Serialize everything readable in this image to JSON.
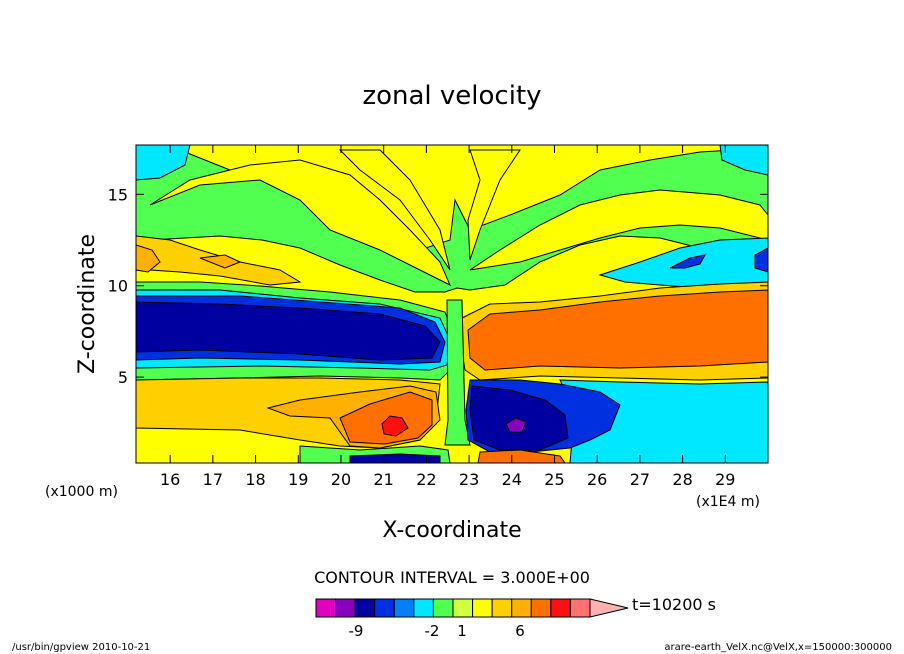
{
  "chart_data": {
    "type": "heatmap",
    "title": "zonal velocity",
    "xlabel": "X-coordinate",
    "ylabel": "Z-coordinate",
    "x_unit": "(x1E4 m)",
    "y_unit": "(x1000 m)",
    "xlim": [
      15.2,
      30.0
    ],
    "ylim": [
      0.3,
      17.7
    ],
    "x_ticks": [
      16,
      17,
      18,
      19,
      20,
      21,
      22,
      23,
      24,
      25,
      26,
      27,
      28,
      29
    ],
    "x_tick_labels": [
      "16",
      "17",
      "18",
      "19",
      "20",
      "21",
      "22",
      "23",
      "24",
      "25",
      "26",
      "27",
      "28",
      "29"
    ],
    "y_ticks": [
      5,
      10,
      15
    ],
    "y_tick_labels": [
      "5",
      "10",
      "15"
    ],
    "contour_interval_text": "CONTOUR INTERVAL = 3.000E+00",
    "colorbar": {
      "colors": [
        "#e000c0",
        "#8800c0",
        "#0000a0",
        "#0030e0",
        "#0080ff",
        "#00e8ff",
        "#50ff50",
        "#d0ff40",
        "#ffff00",
        "#ffd000",
        "#ffb000",
        "#ff7000",
        "#ff1010",
        "#ff7070",
        "#ffb0b0"
      ],
      "tick_labels": [
        "-9",
        "-2",
        "1",
        "6"
      ],
      "tick_values": [
        -9,
        -2,
        1,
        6
      ]
    },
    "time_label": "t=10200 s",
    "features": [
      {
        "sign": "negative",
        "x_range": [
          15.2,
          22.3
        ],
        "z_range": [
          5.8,
          9.2
        ],
        "max_abs": 9
      },
      {
        "sign": "positive",
        "x_range": [
          22.8,
          30.0
        ],
        "z_range": [
          5.6,
          9.2
        ],
        "max_abs": 6
      },
      {
        "sign": "positive",
        "x_range": [
          20.0,
          22.2
        ],
        "z_range": [
          0.8,
          4.2
        ],
        "max_abs": 9
      },
      {
        "sign": "negative",
        "x_range": [
          22.8,
          25.2
        ],
        "z_range": [
          0.5,
          4.6
        ],
        "max_abs": 9
      },
      {
        "sign": "negative",
        "x_range": [
          26.5,
          30.0
        ],
        "z_range": [
          9.8,
          12.8
        ],
        "max_abs": 3
      }
    ]
  },
  "footer": {
    "left": "/usr/bin/gpview  2010-10-21",
    "right": "arare-earth_VelX.nc@VelX,x=150000:300000"
  }
}
